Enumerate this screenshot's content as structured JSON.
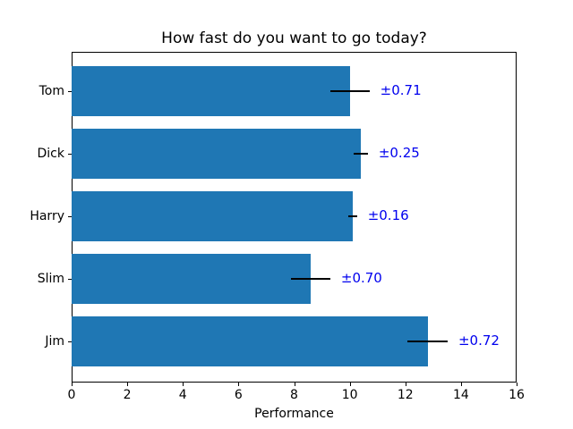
{
  "chart_data": {
    "type": "bar",
    "orientation": "horizontal",
    "title": "How fast do you want to go today?",
    "xlabel": "Performance",
    "ylabel": "",
    "categories": [
      "Tom",
      "Dick",
      "Harry",
      "Slim",
      "Jim"
    ],
    "series": [
      {
        "name": "Performance",
        "values": [
          10.0,
          10.4,
          10.1,
          8.6,
          12.8
        ],
        "errors": [
          0.71,
          0.25,
          0.16,
          0.7,
          0.72
        ]
      }
    ],
    "error_labels": [
      "±0.71",
      "±0.25",
      "±0.16",
      "±0.70",
      "±0.72"
    ],
    "xlim": [
      0,
      16
    ],
    "xticks": [
      0,
      2,
      4,
      6,
      8,
      10,
      12,
      14,
      16
    ],
    "grid": false,
    "legend": null,
    "colors": {
      "bar": "#1f77b4",
      "errorbar": "#000000",
      "error_label_text": "#0000ee",
      "axis": "#000000",
      "background": "#ffffff"
    }
  }
}
